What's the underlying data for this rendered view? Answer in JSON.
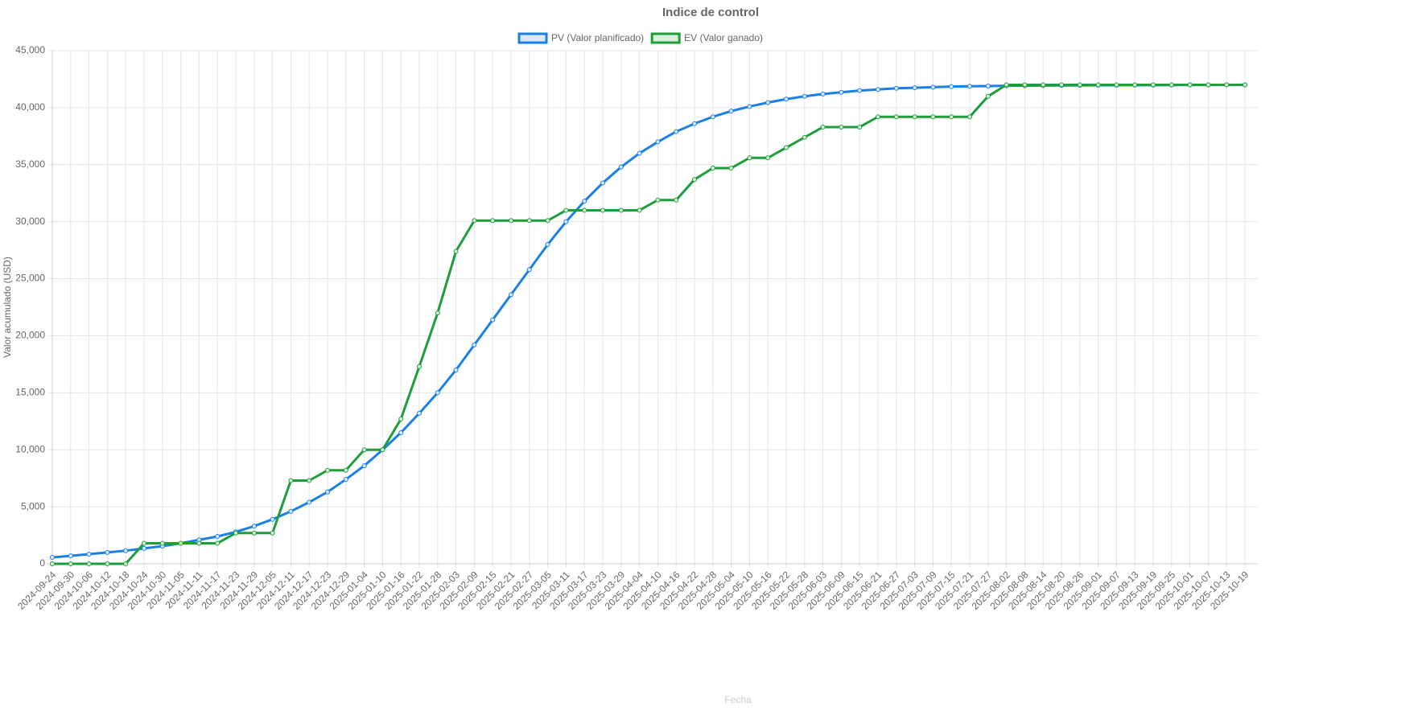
{
  "chart_data": {
    "type": "line",
    "title": "Indice de control",
    "x_label": "Fecha",
    "y_label": "Valor acumulado (USD)",
    "categories": [
      "2024-09-24",
      "2024-09-30",
      "2024-10-06",
      "2024-10-12",
      "2024-10-18",
      "2024-10-24",
      "2024-10-30",
      "2024-11-05",
      "2024-11-11",
      "2024-11-17",
      "2024-11-23",
      "2024-11-29",
      "2024-12-05",
      "2024-12-11",
      "2024-12-17",
      "2024-12-23",
      "2024-12-29",
      "2025-01-04",
      "2025-01-10",
      "2025-01-16",
      "2025-01-22",
      "2025-01-28",
      "2025-02-03",
      "2025-02-09",
      "2025-02-15",
      "2025-02-21",
      "2025-02-27",
      "2025-03-05",
      "2025-03-11",
      "2025-03-17",
      "2025-03-23",
      "2025-03-29",
      "2025-04-04",
      "2025-04-10",
      "2025-04-16",
      "2025-04-22",
      "2025-04-28",
      "2025-05-04",
      "2025-05-10",
      "2025-05-16",
      "2025-05-22",
      "2025-05-28",
      "2025-06-03",
      "2025-06-09",
      "2025-06-15",
      "2025-06-21",
      "2025-06-27",
      "2025-07-03",
      "2025-07-09",
      "2025-07-15",
      "2025-07-21",
      "2025-07-27",
      "2025-08-02",
      "2025-08-08",
      "2025-08-14",
      "2025-08-20",
      "2025-08-26",
      "2025-09-01",
      "2025-09-07",
      "2025-09-13",
      "2025-09-19",
      "2025-09-25",
      "2025-10-01",
      "2025-10-07",
      "2025-10-13",
      "2025-10-19"
    ],
    "series": [
      {
        "name": "PV (Valor planificado)",
        "color": "#1a7fe8",
        "fill": "#dbeafb",
        "values": [
          560,
          700,
          850,
          1000,
          1150,
          1350,
          1550,
          1800,
          2100,
          2400,
          2800,
          3300,
          3900,
          4600,
          5400,
          6300,
          7400,
          8600,
          10000,
          11500,
          13200,
          15000,
          17000,
          19200,
          21400,
          23600,
          25800,
          28000,
          30000,
          31800,
          33400,
          34800,
          36000,
          37000,
          37900,
          38600,
          39200,
          39700,
          40100,
          40450,
          40750,
          41000,
          41200,
          41350,
          41500,
          41600,
          41700,
          41750,
          41800,
          41850,
          41880,
          41900,
          41920,
          41930,
          41940,
          41950,
          41960,
          41965,
          41970,
          41975,
          41980,
          41985,
          41990,
          41995,
          42000,
          42000
        ]
      },
      {
        "name": "EV (Valor ganado)",
        "color": "#1e9e3a",
        "fill": "#d8f0dc",
        "values": [
          0,
          0,
          0,
          0,
          0,
          1800,
          1800,
          1800,
          1800,
          1800,
          2700,
          2700,
          2700,
          7300,
          7300,
          8200,
          8200,
          10000,
          10000,
          12700,
          17300,
          22000,
          27400,
          30100,
          30100,
          30100,
          30100,
          30100,
          31000,
          31000,
          31000,
          31000,
          31000,
          31900,
          31900,
          33700,
          34700,
          34700,
          35600,
          35600,
          36500,
          37400,
          38300,
          38300,
          38300,
          39200,
          39200,
          39200,
          39200,
          39200,
          39200,
          41000,
          42000,
          42000,
          42000,
          42000,
          42000,
          42000,
          42000,
          42000,
          42000,
          42000,
          42000,
          42000,
          42000,
          42000
        ]
      }
    ],
    "ylim": [
      0,
      45000
    ],
    "yticks": [
      0,
      {
        "value": 5000,
        "label": "5,000"
      },
      {
        "value": 10000,
        "label": "10,000"
      },
      {
        "value": 15000,
        "label": "15,000"
      },
      {
        "value": 20000,
        "label": "20,000"
      },
      {
        "value": 25000,
        "label": "25,000"
      },
      {
        "value": 30000,
        "label": "30,000"
      },
      {
        "value": 35000,
        "label": "35,000"
      },
      {
        "value": 40000,
        "label": "40,000"
      },
      {
        "value": 45000,
        "label": "45,000"
      }
    ],
    "grid": true,
    "legend": "top"
  }
}
